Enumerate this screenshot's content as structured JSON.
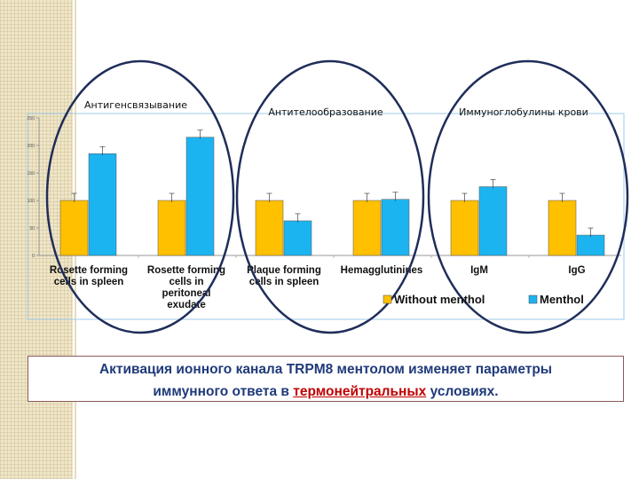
{
  "caption": {
    "line1": "Активация ионного канала TRPM8 ментолом изменяет параметры",
    "line2_prefix": "иммунного ответа в ",
    "line2_highlight": "термонейтральных",
    "line2_suffix": " условиях."
  },
  "group_titles": [
    "Антигенсвязывание",
    "Антителообразование",
    "Иммуноглобулины крови"
  ],
  "colors": {
    "without": "#ffc000",
    "menthol": "#1cb4f0",
    "circle": "#1f2d5a",
    "frame": "#9ecbe8"
  },
  "chart_data": {
    "type": "bar",
    "y_ticks": [
      "0",
      "50",
      "100",
      "150",
      "200",
      "250"
    ],
    "ylim": [
      0,
      250
    ],
    "categories": [
      [
        "Rosette forming",
        "cells in spleen"
      ],
      [
        "Rosette forming",
        "cells in",
        "peritoneal",
        "exudate"
      ],
      [
        "Plaque forming",
        "cells in spleen"
      ],
      [
        "Hemagglutinines"
      ],
      [
        "IgM"
      ],
      [
        "IgG"
      ]
    ],
    "series": [
      {
        "name": "Without menthol",
        "values": [
          100,
          100,
          100,
          100,
          100,
          100
        ]
      },
      {
        "name": "Menthol",
        "values": [
          185,
          215,
          63,
          102,
          125,
          37
        ]
      }
    ],
    "legend_position": "bottom"
  }
}
